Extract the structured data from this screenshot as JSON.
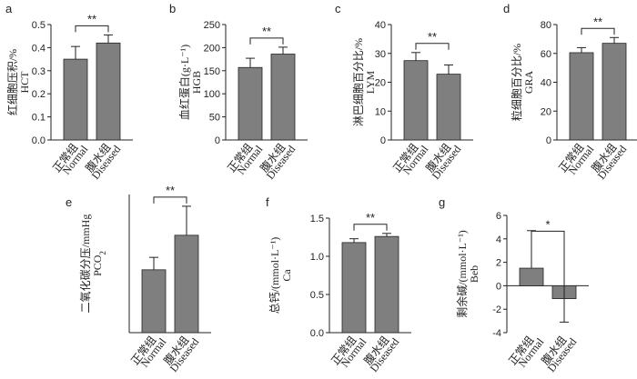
{
  "chart_data": [
    {
      "panel": "a",
      "type": "bar",
      "ylabel": "红细胞压积/%",
      "ylabel2": "HCT",
      "ylabel2_sub": "",
      "categories": [
        "正常组",
        "腹水组"
      ],
      "categories2": [
        "Normal",
        "Diseased"
      ],
      "values": [
        0.35,
        0.42
      ],
      "errors": [
        0.055,
        0.035
      ],
      "ylim": [
        0,
        0.5
      ],
      "yticks": [
        "0.0",
        "0.1",
        "0.2",
        "0.3",
        "0.4",
        "0.5"
      ],
      "significance": "**",
      "bracket": "top-bracket"
    },
    {
      "panel": "b",
      "type": "bar",
      "ylabel": "血红蛋白(g·L⁻¹)",
      "ylabel2": "HGB",
      "ylabel2_sub": "",
      "categories": [
        "正常组",
        "腹水组"
      ],
      "categories2": [
        "Normal",
        "Diseased"
      ],
      "values": [
        157,
        186
      ],
      "errors": [
        20,
        15
      ],
      "ylim": [
        0,
        250
      ],
      "yticks": [
        "0",
        "50",
        "100",
        "150",
        "200",
        "250"
      ],
      "significance": "**",
      "bracket": "top-bracket"
    },
    {
      "panel": "c",
      "type": "bar",
      "ylabel": "淋巴细胞百分比/%",
      "ylabel2": "LYM",
      "ylabel2_sub": "",
      "categories": [
        "正常组",
        "腹水组"
      ],
      "categories2": [
        "Normal",
        "Diseased"
      ],
      "values": [
        27.5,
        22.8
      ],
      "errors": [
        2.8,
        3.2
      ],
      "ylim": [
        0,
        40
      ],
      "yticks": [
        "0",
        "10",
        "20",
        "30",
        "40"
      ],
      "significance": "**",
      "bracket": "top-bracket"
    },
    {
      "panel": "d",
      "type": "bar",
      "ylabel": "粒细胞百分比/%",
      "ylabel2": "GRA",
      "ylabel2_sub": "",
      "categories": [
        "正常组",
        "腹水组"
      ],
      "categories2": [
        "Normal",
        "Diseased"
      ],
      "values": [
        60.5,
        67.0
      ],
      "errors": [
        3.5,
        4.0
      ],
      "ylim": [
        0,
        80
      ],
      "yticks": [
        "0",
        "20",
        "40",
        "60",
        "80"
      ],
      "significance": "**",
      "bracket": "top-bracket"
    },
    {
      "panel": "e",
      "type": "bar",
      "ylabel": "二氧化碳分压/mmHg",
      "ylabel2": "PCO",
      "ylabel2_sub": "2",
      "categories": [
        "正常组",
        "腹水组"
      ],
      "categories2": [
        "Normal",
        "Diseased"
      ],
      "values": [
        45.5,
        70.5
      ],
      "errors": [
        9,
        21
      ],
      "ylim": [
        0,
        100
      ],
      "yticks": [],
      "significance": "**",
      "bracket": "top-bracket"
    },
    {
      "panel": "f",
      "type": "bar",
      "ylabel": "总钙/(mmol·L⁻¹)",
      "ylabel2": "Ca",
      "ylabel2_sub": "",
      "categories": [
        "正常组",
        "腹水组"
      ],
      "categories2": [
        "Normal",
        "Diseased"
      ],
      "values": [
        1.18,
        1.26
      ],
      "errors": [
        0.05,
        0.04
      ],
      "ylim": [
        0,
        1.5
      ],
      "yticks": [
        "0.0",
        "0.5",
        "1.0",
        "1.5"
      ],
      "significance": "**",
      "bracket": "top-bracket"
    },
    {
      "panel": "g",
      "type": "bar",
      "ylabel": "剩余碱/(mmol·L⁻¹)",
      "ylabel2": "Beb",
      "ylabel2_sub": "",
      "categories": [
        "正常组",
        "腹水组"
      ],
      "categories2": [
        "Normal",
        "Diseased"
      ],
      "values": [
        1.5,
        -1.1
      ],
      "errors": [
        3.2,
        2.0
      ],
      "ylim": [
        -4,
        6
      ],
      "yticks": [
        "-4",
        "-2",
        "0",
        "2",
        "4",
        "6"
      ],
      "significance": "*",
      "bracket": "drop-bracket"
    }
  ]
}
